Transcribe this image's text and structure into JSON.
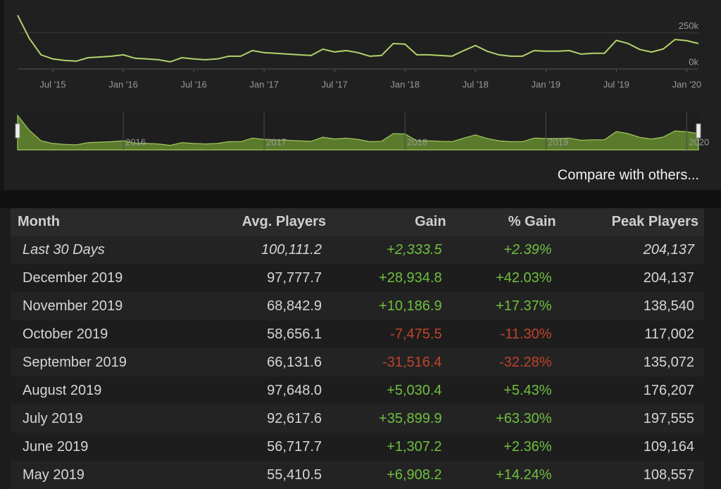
{
  "chart_data": {
    "type": "line",
    "x": [
      "2015-04",
      "2015-05",
      "2015-06",
      "2015-07",
      "2015-08",
      "2015-09",
      "2015-10",
      "2015-11",
      "2015-12",
      "2016-01",
      "2016-02",
      "2016-03",
      "2016-04",
      "2016-05",
      "2016-06",
      "2016-07",
      "2016-08",
      "2016-09",
      "2016-10",
      "2016-11",
      "2016-12",
      "2017-01",
      "2017-02",
      "2017-03",
      "2017-04",
      "2017-05",
      "2017-06",
      "2017-07",
      "2017-08",
      "2017-09",
      "2017-10",
      "2017-11",
      "2017-12",
      "2018-01",
      "2018-02",
      "2018-03",
      "2018-04",
      "2018-05",
      "2018-06",
      "2018-07",
      "2018-08",
      "2018-09",
      "2018-10",
      "2018-11",
      "2018-12",
      "2019-01",
      "2019-02",
      "2019-03",
      "2019-04",
      "2019-05",
      "2019-06",
      "2019-07",
      "2019-08",
      "2019-09",
      "2019-10",
      "2019-11",
      "2019-12",
      "2020-01",
      "2020-02"
    ],
    "values": [
      372000,
      211000,
      98000,
      69000,
      59000,
      54000,
      78000,
      83000,
      88000,
      98000,
      74000,
      69000,
      64000,
      49000,
      78000,
      69000,
      64000,
      69000,
      88000,
      88000,
      127000,
      113000,
      108000,
      103000,
      98000,
      93000,
      137000,
      118000,
      127000,
      113000,
      88000,
      93000,
      176000,
      172000,
      98000,
      98000,
      93000,
      88000,
      127000,
      162000,
      123000,
      98000,
      88000,
      88000,
      127000,
      123000,
      123000,
      127000,
      103000,
      108557,
      109164,
      197555,
      176207,
      135072,
      117002,
      138540,
      204137,
      196000,
      176000
    ],
    "color": "#b3d36b",
    "xlim": [
      "2015-04",
      "2020-02"
    ],
    "ylim": [
      0,
      380000
    ],
    "yticks": [
      {
        "value": 0,
        "label": "0k"
      },
      {
        "value": 250000,
        "label": "250k"
      }
    ],
    "xticks": [
      {
        "value": "2015-07",
        "label": "Jul '15"
      },
      {
        "value": "2016-01",
        "label": "Jan '16"
      },
      {
        "value": "2016-07",
        "label": "Jul '16"
      },
      {
        "value": "2017-01",
        "label": "Jan '17"
      },
      {
        "value": "2017-07",
        "label": "Jul '17"
      },
      {
        "value": "2018-01",
        "label": "Jan '18"
      },
      {
        "value": "2018-07",
        "label": "Jul '18"
      },
      {
        "value": "2019-01",
        "label": "Jan '19"
      },
      {
        "value": "2019-07",
        "label": "Jul '19"
      },
      {
        "value": "2020-01",
        "label": "Jan '20"
      }
    ],
    "navigator_ticks": [
      {
        "value": "2016-01",
        "label": "2016"
      },
      {
        "value": "2017-01",
        "label": "2017"
      },
      {
        "value": "2018-01",
        "label": "2018"
      },
      {
        "value": "2019-01",
        "label": "2019"
      },
      {
        "value": "2020-01",
        "label": "2020"
      }
    ],
    "grid": true
  },
  "compare_link": "Compare with others...",
  "table": {
    "headers": [
      "Month",
      "Avg. Players",
      "Gain",
      "% Gain",
      "Peak Players"
    ],
    "rows": [
      [
        "Last 30 Days",
        "100,111.2",
        "+2,333.5",
        "+2.39%",
        "204,137"
      ],
      [
        "December 2019",
        "97,777.7",
        "+28,934.8",
        "+42.03%",
        "204,137"
      ],
      [
        "November 2019",
        "68,842.9",
        "+10,186.9",
        "+17.37%",
        "138,540"
      ],
      [
        "October 2019",
        "58,656.1",
        "-7,475.5",
        "-11.30%",
        "117,002"
      ],
      [
        "September 2019",
        "66,131.6",
        "-31,516.4",
        "-32.28%",
        "135,072"
      ],
      [
        "August 2019",
        "97,648.0",
        "+5,030.4",
        "+5.43%",
        "176,207"
      ],
      [
        "July 2019",
        "92,617.6",
        "+35,899.9",
        "+63.30%",
        "197,555"
      ],
      [
        "June 2019",
        "56,717.7",
        "+1,307.2",
        "+2.36%",
        "109,164"
      ],
      [
        "May 2019",
        "55,410.5",
        "+6,908.2",
        "+14.24%",
        "108,557"
      ]
    ]
  }
}
